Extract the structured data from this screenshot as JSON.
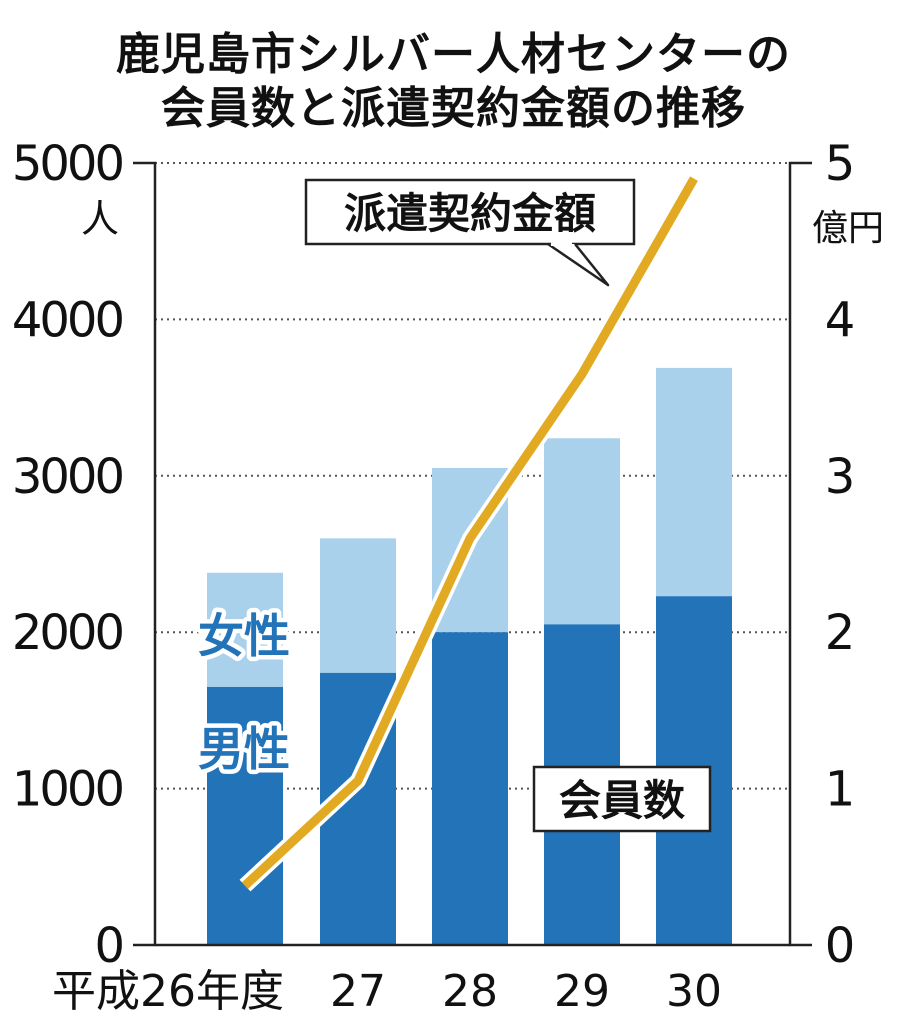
{
  "chart_data": {
    "type": "bar",
    "title_lines": [
      "鹿児島市シルバー人材センターの",
      "会員数と派遣契約金額の推移"
    ],
    "categories": [
      "平成26年度",
      "27",
      "28",
      "29",
      "30"
    ],
    "left_axis": {
      "unit": "人",
      "ylim": [
        0,
        5000
      ],
      "ticks": [
        "0",
        "1000",
        "2000",
        "3000",
        "4000",
        "5000"
      ]
    },
    "right_axis": {
      "unit": "億円",
      "ylim": [
        0,
        5
      ],
      "ticks": [
        "0",
        "1",
        "2",
        "3",
        "4",
        "5"
      ]
    },
    "series": [
      {
        "name": "男性",
        "kind": "stacked-bar",
        "color": "#2273b8",
        "values": [
          1650,
          1740,
          2000,
          2050,
          2230
        ]
      },
      {
        "name": "女性",
        "kind": "stacked-bar",
        "color": "#a9d1ec",
        "values": [
          730,
          860,
          1050,
          1190,
          1460
        ]
      },
      {
        "name": "派遣契約金額",
        "kind": "line",
        "axis": "right",
        "color": "#e2aa22",
        "values": [
          0.38,
          1.05,
          2.6,
          3.65,
          4.9
        ]
      }
    ],
    "callouts": {
      "bars": "会員数",
      "line": "派遣契約金額"
    },
    "grid": "dotted horizontal"
  }
}
